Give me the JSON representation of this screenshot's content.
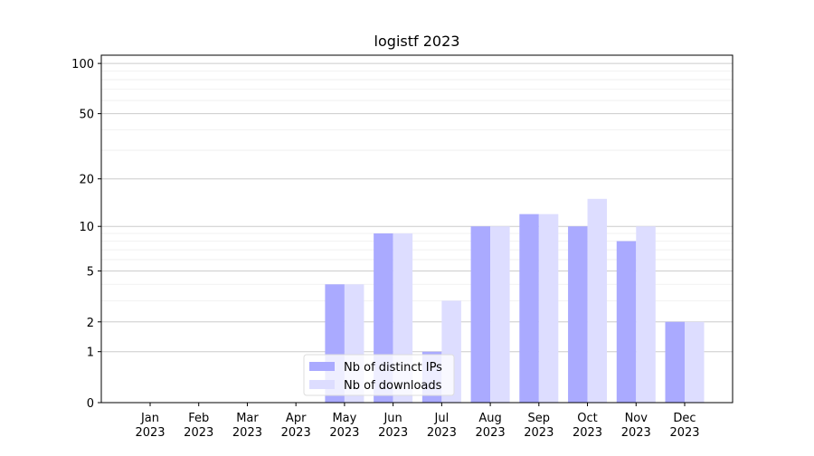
{
  "chart_data": {
    "type": "bar",
    "title": "logistf 2023",
    "categories": [
      "Jan\n2023",
      "Feb\n2023",
      "Mar\n2023",
      "Apr\n2023",
      "May\n2023",
      "Jun\n2023",
      "Jul\n2023",
      "Aug\n2023",
      "Sep\n2023",
      "Oct\n2023",
      "Nov\n2023",
      "Dec\n2023"
    ],
    "series": [
      {
        "name": "Nb of distinct IPs",
        "color": "#aaaaff",
        "values": [
          0,
          0,
          0,
          0,
          4,
          9,
          1,
          10,
          12,
          10,
          8,
          2
        ]
      },
      {
        "name": "Nb of downloads",
        "color": "#ddddff",
        "values": [
          0,
          0,
          0,
          0,
          4,
          9,
          3,
          10,
          12,
          15,
          10,
          2
        ]
      }
    ],
    "yscale": "log1p",
    "ylim": [
      0,
      112
    ],
    "yticks": [
      0,
      1,
      2,
      5,
      10,
      20,
      50,
      100
    ],
    "minor_yticks": [
      3,
      4,
      6,
      7,
      8,
      9,
      30,
      40,
      60,
      70,
      80,
      90
    ],
    "grid": true,
    "legend": "lower center"
  }
}
